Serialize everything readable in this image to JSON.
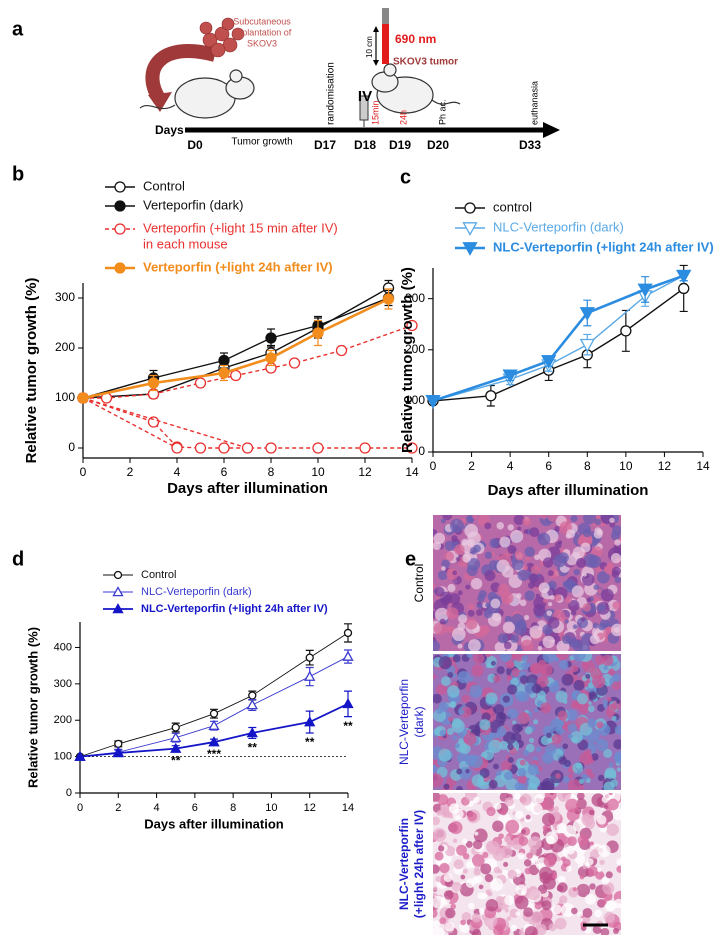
{
  "panel_a": {
    "label": "a",
    "implant": [
      "Subcutaneous",
      "implantation of",
      "SKOV3"
    ],
    "days_label": "Days",
    "days": [
      "D0",
      "D17",
      "D18",
      "D19",
      "D20",
      "D33"
    ],
    "phase": "Tumor growth",
    "events": [
      "randomisation",
      "IV",
      "15min",
      "24h",
      "Ph ac.",
      "euthanasia"
    ],
    "distance": "10 cm",
    "wavelength": "690 nm",
    "tumor": "SKOV3 tumor"
  },
  "panel_e": {
    "label": "e",
    "rows": [
      [
        "Control"
      ],
      [
        "NLC-Verteporfin",
        "(dark)"
      ],
      [
        "NLC-Verteporfin",
        "(+light 24h after IV)"
      ]
    ]
  },
  "chart_data": [
    {
      "type": "line",
      "panel": "b",
      "xlabel": "Days after illumination",
      "ylabel": "Relative tumor growth (%)",
      "xlim": [
        0,
        14
      ],
      "xticks": [
        0,
        2,
        4,
        6,
        8,
        10,
        12,
        14
      ],
      "ylim": [
        -20,
        330
      ],
      "yticks": [
        0,
        100,
        200,
        300
      ],
      "series": [
        {
          "name": [
            "Control"
          ],
          "color": "#111111",
          "marker": "circle-open",
          "x": [
            0,
            3,
            6,
            8,
            10,
            13
          ],
          "values": [
            100,
            108,
            160,
            190,
            240,
            320
          ],
          "errors": [
            0,
            8,
            15,
            15,
            20,
            15
          ]
        },
        {
          "name": [
            "Verteporfin (dark)"
          ],
          "color": "#111111",
          "marker": "circle",
          "x": [
            0,
            3,
            6,
            8,
            10,
            13
          ],
          "values": [
            100,
            140,
            175,
            220,
            245,
            300
          ],
          "errors": [
            0,
            15,
            15,
            18,
            18,
            15
          ]
        },
        {
          "name": [
            "Verteporfin (+light 15 min after IV)",
            "in each mouse"
          ],
          "color": "#e8312f",
          "marker": "circle-open",
          "dashed": true,
          "mice": [
            {
              "x": [
                0,
                1,
                3,
                5,
                6.5,
                8,
                9,
                11,
                14
              ],
              "values": [
                100,
                100,
                108,
                130,
                145,
                160,
                170,
                195,
                245
              ]
            },
            {
              "x": [
                0,
                3,
                4,
                5,
                6,
                8,
                10,
                12,
                14
              ],
              "values": [
                100,
                52,
                2,
                0,
                0,
                0,
                0,
                0,
                0
              ]
            },
            {
              "x": [
                0,
                4
              ],
              "values": [
                100,
                0
              ]
            },
            {
              "x": [
                0,
                7
              ],
              "values": [
                100,
                0
              ]
            }
          ]
        },
        {
          "name": [
            "Verteporfin (+light 24h after IV)"
          ],
          "color": "#f28c1c",
          "marker": "circle",
          "emphasis": true,
          "x": [
            0,
            3,
            6,
            8,
            10,
            13
          ],
          "values": [
            100,
            130,
            150,
            180,
            230,
            298
          ],
          "errors": [
            0,
            15,
            15,
            15,
            25,
            20
          ]
        }
      ]
    },
    {
      "type": "line",
      "panel": "c",
      "xlabel": "Days after illumination",
      "ylabel": "Relative tumor growth (%)",
      "xlim": [
        0,
        14
      ],
      "xticks": [
        0,
        2,
        4,
        6,
        8,
        10,
        12,
        14
      ],
      "ylim": [
        0,
        360
      ],
      "yticks": [
        0,
        100,
        200,
        300
      ],
      "series": [
        {
          "name": [
            "control"
          ],
          "color": "#111111",
          "marker": "circle-open",
          "x": [
            0,
            3,
            6,
            8,
            10,
            13
          ],
          "values": [
            100,
            110,
            160,
            190,
            237,
            320
          ],
          "errors": [
            0,
            20,
            20,
            25,
            40,
            45
          ]
        },
        {
          "name": [
            "NLC-Verteporfin (dark)"
          ],
          "color": "#5aa9e6",
          "marker": "triangle-down-open",
          "x": [
            0,
            4,
            6,
            8,
            11,
            13
          ],
          "values": [
            100,
            142,
            170,
            210,
            305,
            345
          ],
          "errors": [
            0,
            10,
            12,
            20,
            20,
            10
          ]
        },
        {
          "name": [
            "NLC-Verteporfin (+light 24h after IV)"
          ],
          "color": "#2b8ce0",
          "marker": "triangle-down",
          "emphasis": true,
          "x": [
            0,
            4,
            6,
            8,
            11,
            13
          ],
          "values": [
            100,
            150,
            178,
            272,
            318,
            345
          ],
          "errors": [
            0,
            10,
            10,
            25,
            25,
            10
          ]
        }
      ]
    },
    {
      "type": "line",
      "panel": "d",
      "xlabel": "Days after illumination",
      "ylabel": "Relative tumor growth (%)",
      "xlim": [
        0,
        14
      ],
      "xticks": [
        0,
        2,
        4,
        6,
        8,
        10,
        12,
        14
      ],
      "ylim": [
        0,
        470
      ],
      "yticks": [
        0,
        100,
        200,
        300,
        400
      ],
      "hline": 100,
      "series": [
        {
          "name": [
            "Control"
          ],
          "color": "#111111",
          "marker": "circle-open",
          "x": [
            0,
            2,
            5,
            7,
            9,
            12,
            14
          ],
          "values": [
            100,
            135,
            180,
            218,
            268,
            372,
            440
          ],
          "errors": [
            0,
            8,
            12,
            12,
            12,
            20,
            25
          ]
        },
        {
          "name": [
            "NLC-Verteporfin (dark)"
          ],
          "color": "#3a3ad0",
          "marker": "triangle-up-open",
          "x": [
            0,
            2,
            5,
            7,
            9,
            12,
            14
          ],
          "values": [
            100,
            112,
            152,
            185,
            242,
            320,
            375
          ],
          "errors": [
            0,
            8,
            12,
            12,
            15,
            25,
            18
          ]
        },
        {
          "name": [
            "NLC-Verteporfin (+light 24h after IV)"
          ],
          "color": "#1515c8",
          "marker": "triangle-up",
          "emphasis": true,
          "x": [
            0,
            2,
            5,
            7,
            9,
            12,
            14
          ],
          "values": [
            100,
            110,
            122,
            140,
            165,
            195,
            245
          ],
          "errors": [
            0,
            8,
            8,
            8,
            15,
            30,
            35
          ]
        }
      ],
      "annotations": [
        {
          "text": "**",
          "x": 5
        },
        {
          "text": "***",
          "x": 7
        },
        {
          "text": "**",
          "x": 9
        },
        {
          "text": "**",
          "x": 12
        },
        {
          "text": "**",
          "x": 14
        }
      ]
    }
  ]
}
